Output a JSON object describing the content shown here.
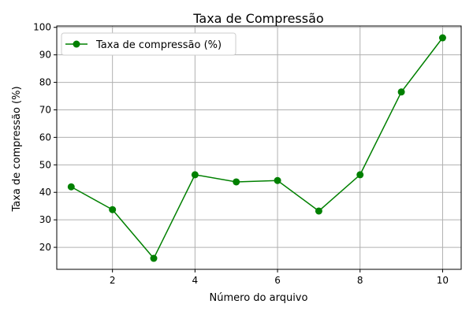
{
  "chart_data": {
    "type": "line",
    "title": "Taxa de Compressão",
    "xlabel": "Número do arquivo",
    "ylabel": "Taxa de compressão (%)",
    "xlim": [
      0.65,
      10.45
    ],
    "ylim": [
      12,
      100.5
    ],
    "xticks": [
      2,
      4,
      6,
      8,
      10
    ],
    "yticks": [
      20,
      30,
      40,
      50,
      60,
      70,
      80,
      90,
      100
    ],
    "grid": true,
    "legend_position": "top-left",
    "series": [
      {
        "name": "Taxa de compressão (%)",
        "color": "#008000",
        "marker": "circle",
        "x": [
          1,
          2,
          3,
          4,
          5,
          6,
          7,
          8,
          9,
          10
        ],
        "y": [
          42.0,
          33.7,
          16.0,
          46.4,
          43.8,
          44.3,
          33.2,
          46.4,
          76.5,
          96.2
        ]
      }
    ]
  }
}
